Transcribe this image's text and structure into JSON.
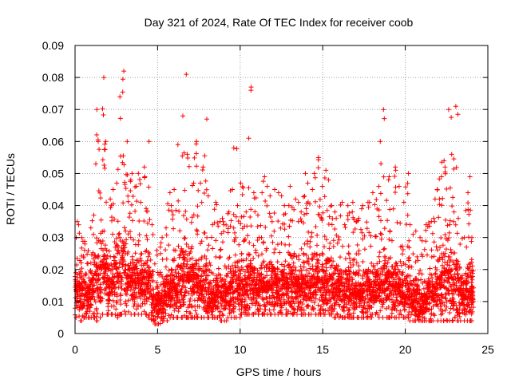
{
  "chart_data": {
    "type": "scatter",
    "title": "Day 321 of 2024, Rate Of TEC Index for receiver coob",
    "xlabel": "GPS time / hours",
    "ylabel": "ROTI / TECUs",
    "xlim": [
      0,
      25
    ],
    "ylim": [
      0,
      0.09
    ],
    "x_ticks": [
      "0",
      "5",
      "10",
      "15",
      "20",
      "25"
    ],
    "y_ticks": [
      "0",
      "0.01",
      "0.02",
      "0.03",
      "0.04",
      "0.05",
      "0.06",
      "0.07",
      "0.08",
      "0.09"
    ],
    "grid": true,
    "legend": "none",
    "marker": "plus",
    "color": "#ff0000",
    "series": [
      {
        "x": [
          0.0,
          0.2,
          0.4,
          0.6,
          0.8,
          1.0,
          1.2,
          1.4,
          1.6,
          1.8,
          2.0,
          2.2,
          2.4,
          2.6,
          2.8,
          3.0,
          3.2,
          3.4,
          3.6,
          3.8,
          4.0,
          4.2,
          4.4,
          4.6,
          4.8,
          5.0,
          5.2,
          5.4,
          5.6,
          5.8,
          6.0,
          6.2,
          6.4,
          6.6,
          6.8,
          7.0,
          7.2,
          7.4,
          7.6,
          7.8,
          8.0,
          8.2,
          8.4,
          8.6,
          8.8,
          9.0,
          9.2,
          9.4,
          9.6,
          9.8,
          10.0,
          10.2,
          10.4,
          10.6,
          10.8,
          11.0,
          11.2,
          11.4,
          11.6,
          11.8,
          12.0,
          12.2,
          12.4,
          12.6,
          12.8,
          13.0,
          13.2,
          13.4,
          13.6,
          13.8,
          14.0,
          14.2,
          14.4,
          14.6,
          14.8,
          15.0,
          15.2,
          15.4,
          15.6,
          15.8,
          16.0,
          16.2,
          16.4,
          16.6,
          16.8,
          17.0,
          17.2,
          17.4,
          17.6,
          17.8,
          18.0,
          18.2,
          18.4,
          18.6,
          18.8,
          19.0,
          19.2,
          19.4,
          19.6,
          19.8,
          20.0,
          20.2,
          20.4,
          20.6,
          20.8,
          21.0,
          21.2,
          21.4,
          21.6,
          21.8,
          22.0,
          22.2,
          22.4,
          22.6,
          22.8,
          23.0,
          23.2,
          23.4,
          23.6,
          23.8,
          24.0
        ],
        "y_max": [
          0.035,
          0.034,
          0.03,
          0.028,
          0.033,
          0.037,
          0.07,
          0.06,
          0.08,
          0.06,
          0.042,
          0.045,
          0.047,
          0.074,
          0.082,
          0.06,
          0.048,
          0.05,
          0.046,
          0.05,
          0.052,
          0.049,
          0.06,
          0.034,
          0.026,
          0.027,
          0.03,
          0.033,
          0.044,
          0.04,
          0.045,
          0.059,
          0.068,
          0.081,
          0.056,
          0.047,
          0.06,
          0.047,
          0.052,
          0.067,
          0.043,
          0.034,
          0.041,
          0.035,
          0.036,
          0.034,
          0.038,
          0.045,
          0.058,
          0.04,
          0.047,
          0.038,
          0.061,
          0.077,
          0.044,
          0.037,
          0.044,
          0.049,
          0.046,
          0.043,
          0.045,
          0.044,
          0.043,
          0.04,
          0.04,
          0.046,
          0.042,
          0.041,
          0.038,
          0.05,
          0.047,
          0.045,
          0.05,
          0.055,
          0.046,
          0.051,
          0.048,
          0.04,
          0.038,
          0.036,
          0.041,
          0.034,
          0.04,
          0.038,
          0.041,
          0.036,
          0.039,
          0.04,
          0.041,
          0.041,
          0.044,
          0.046,
          0.06,
          0.07,
          0.048,
          0.049,
          0.052,
          0.051,
          0.046,
          0.041,
          0.05,
          0.034,
          0.031,
          0.032,
          0.03,
          0.029,
          0.034,
          0.035,
          0.036,
          0.045,
          0.049,
          0.054,
          0.052,
          0.07,
          0.056,
          0.071,
          0.036,
          0.03,
          0.044,
          0.049,
          0.03
        ],
        "y_min": [
          0.005,
          0.004,
          0.005,
          0.005,
          0.005,
          0.005,
          0.004,
          0.005,
          0.006,
          0.006,
          0.006,
          0.006,
          0.005,
          0.006,
          0.006,
          0.006,
          0.006,
          0.006,
          0.006,
          0.006,
          0.006,
          0.006,
          0.005,
          0.004,
          0.003,
          0.003,
          0.004,
          0.004,
          0.005,
          0.005,
          0.005,
          0.005,
          0.005,
          0.005,
          0.005,
          0.005,
          0.005,
          0.005,
          0.005,
          0.005,
          0.005,
          0.005,
          0.005,
          0.005,
          0.004,
          0.004,
          0.005,
          0.005,
          0.005,
          0.005,
          0.006,
          0.006,
          0.006,
          0.006,
          0.006,
          0.006,
          0.006,
          0.006,
          0.006,
          0.006,
          0.006,
          0.006,
          0.006,
          0.006,
          0.006,
          0.006,
          0.006,
          0.006,
          0.006,
          0.006,
          0.006,
          0.006,
          0.006,
          0.006,
          0.006,
          0.006,
          0.006,
          0.006,
          0.005,
          0.005,
          0.005,
          0.005,
          0.005,
          0.005,
          0.005,
          0.005,
          0.005,
          0.005,
          0.005,
          0.005,
          0.006,
          0.006,
          0.005,
          0.005,
          0.005,
          0.005,
          0.005,
          0.005,
          0.005,
          0.005,
          0.005,
          0.004,
          0.004,
          0.004,
          0.004,
          0.004,
          0.004,
          0.004,
          0.004,
          0.004,
          0.004,
          0.004,
          0.004,
          0.004,
          0.004,
          0.004,
          0.004,
          0.004,
          0.004,
          0.004,
          0.004
        ],
        "y_typical": [
          0.012,
          0.012,
          0.012,
          0.012,
          0.013,
          0.014,
          0.016,
          0.017,
          0.02,
          0.018,
          0.014,
          0.015,
          0.016,
          0.017,
          0.019,
          0.017,
          0.016,
          0.016,
          0.016,
          0.016,
          0.015,
          0.015,
          0.014,
          0.011,
          0.009,
          0.009,
          0.01,
          0.011,
          0.012,
          0.013,
          0.013,
          0.015,
          0.016,
          0.018,
          0.016,
          0.015,
          0.015,
          0.014,
          0.014,
          0.014,
          0.013,
          0.011,
          0.012,
          0.011,
          0.011,
          0.011,
          0.012,
          0.013,
          0.013,
          0.013,
          0.014,
          0.013,
          0.015,
          0.016,
          0.014,
          0.013,
          0.014,
          0.014,
          0.014,
          0.014,
          0.014,
          0.014,
          0.014,
          0.014,
          0.014,
          0.015,
          0.014,
          0.014,
          0.014,
          0.015,
          0.015,
          0.015,
          0.015,
          0.016,
          0.015,
          0.015,
          0.015,
          0.014,
          0.013,
          0.013,
          0.013,
          0.012,
          0.013,
          0.012,
          0.013,
          0.012,
          0.012,
          0.013,
          0.013,
          0.013,
          0.013,
          0.014,
          0.015,
          0.016,
          0.014,
          0.014,
          0.014,
          0.014,
          0.013,
          0.012,
          0.013,
          0.011,
          0.01,
          0.01,
          0.01,
          0.01,
          0.011,
          0.011,
          0.011,
          0.013,
          0.014,
          0.015,
          0.014,
          0.016,
          0.014,
          0.015,
          0.012,
          0.011,
          0.012,
          0.013,
          0.011
        ]
      }
    ]
  }
}
